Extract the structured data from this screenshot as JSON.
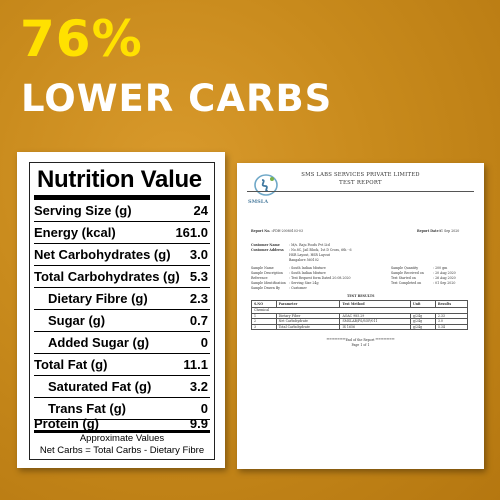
{
  "headline": {
    "percent": "76%",
    "subtitle": "LOWER CARBS"
  },
  "colors": {
    "background": "#c88a1c",
    "percent_color": "#ffe100",
    "subtitle_color": "#ffffff"
  },
  "nutrition": {
    "title": "Nutrition Value",
    "rows": [
      {
        "label": "Serving Size (g)",
        "value": "24"
      },
      {
        "label": "Energy (kcal)",
        "value": "161.0"
      },
      {
        "label": "Net Carbohydrates (g)",
        "value": "3.0"
      },
      {
        "label": "Total Carbohydrates (g)",
        "value": "5.3"
      },
      {
        "label": "Dietary Fibre (g)",
        "value": "2.3"
      },
      {
        "label": "Sugar (g)",
        "value": "0.7"
      },
      {
        "label": "Added Sugar (g)",
        "value": "0"
      },
      {
        "label": "Total Fat (g)",
        "value": "11.1"
      },
      {
        "label": "Saturated Fat (g)",
        "value": "3.2"
      },
      {
        "label": "Trans Fat (g)",
        "value": "0"
      },
      {
        "label": "Protein (g)",
        "value": "9.9"
      }
    ],
    "footnote_1": "Approximate Values",
    "footnote_2": "Net Carbs = Total Carbs - Dietary Fibre"
  },
  "report": {
    "logo_text": "SMSLA",
    "company": "SMS LABS SERVICES PRIVATE LIMITED",
    "title": "TEST REPORT",
    "report_no_label": "Report No. :",
    "report_no": "FDH-20080103-03",
    "report_date_label": "Report Date :",
    "report_date": "01 Sep 2020",
    "customer_name_label": "Customer Name",
    "customer_name": ": M/s. Raju Foods Pvt Ltd",
    "customer_address_label": "Customer Address",
    "customer_address_1": ": No.8C, Jail Block, 1st D Cross, 6th - 6",
    "customer_address_2": "  HSR Layout, HSR Layout",
    "customer_address_3": "  Bangalore 560102",
    "sample_name_label": "Sample Name",
    "sample_name": ": South Indian Mixture",
    "sample_description_label": "Sample Description",
    "sample_description": ": South Indian Mixture",
    "reference_label": "Reference",
    "reference": ": Test Request form Dated 20.08.2020",
    "sample_identification_label": "Sample Identification",
    "sample_identification": ": Serving Size 24g",
    "sample_drawn_label": "Sample Drawn By",
    "sample_drawn": ": Customer",
    "sample_quantity_label": "Sample Quantity",
    "sample_quantity": ": 200 gm",
    "sample_received_label": "Sample Received on",
    "sample_received": ": 20 Aug 2020",
    "test_started_label": "Test Started on",
    "test_started": ": 26 Aug 2020",
    "test_completed_label": "Test Completed on",
    "test_completed": ": 01 Sep 2020",
    "results_heading": "TEST RESULTS",
    "table_headers": [
      "S.NO",
      "Parameter",
      "Test Method",
      "Unit",
      "Results"
    ],
    "section_label": "Chemical",
    "table_rows": [
      [
        "1",
        "Dietary Fiber",
        "AOAC 985.29",
        "g/24g",
        "2.33"
      ],
      [
        "2",
        "Net Carbohydrate",
        "SMSLAB/FS/SOP/011",
        "g/24g",
        "3.0"
      ],
      [
        "3",
        "Total Carbohydrate",
        "IS 1656",
        "g/24g",
        "5.34"
      ]
    ],
    "end_text": "************End of the Report ************",
    "page_text": "Page 1 of 1"
  }
}
